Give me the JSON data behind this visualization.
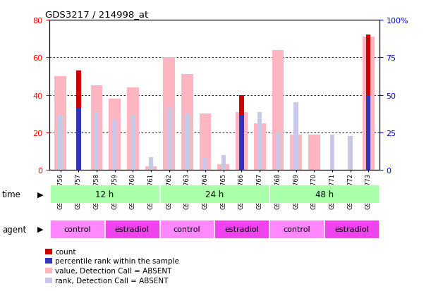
{
  "title": "GDS3217 / 214998_at",
  "samples": [
    "GSM286756",
    "GSM286757",
    "GSM286758",
    "GSM286759",
    "GSM286760",
    "GSM286761",
    "GSM286762",
    "GSM286763",
    "GSM286764",
    "GSM286765",
    "GSM286766",
    "GSM286767",
    "GSM286768",
    "GSM286769",
    "GSM286770",
    "GSM286771",
    "GSM286772",
    "GSM286773"
  ],
  "pink_bars": [
    50,
    0,
    45,
    38,
    44,
    2,
    60,
    51,
    30,
    3,
    31,
    25,
    64,
    19,
    19,
    0,
    0,
    71
  ],
  "red_bars": [
    0,
    53,
    0,
    0,
    0,
    0,
    0,
    0,
    0,
    0,
    40,
    0,
    0,
    0,
    0,
    0,
    0,
    72
  ],
  "blue_bars": [
    0,
    33,
    0,
    0,
    0,
    0,
    0,
    0,
    0,
    0,
    29,
    0,
    0,
    0,
    0,
    0,
    0,
    40
  ],
  "lavender_bars": [
    29,
    0,
    31,
    27,
    29,
    7,
    33,
    30,
    7,
    8,
    0,
    31,
    20,
    36,
    0,
    19,
    18,
    0
  ],
  "time_groups": [
    {
      "label": "12 h",
      "start": 0,
      "end": 5,
      "color": "#aaffaa"
    },
    {
      "label": "24 h",
      "start": 6,
      "end": 11,
      "color": "#aaffaa"
    },
    {
      "label": "48 h",
      "start": 12,
      "end": 17,
      "color": "#aaffaa"
    }
  ],
  "agent_groups": [
    {
      "label": "control",
      "start": 0,
      "end": 2,
      "color": "#ff88ff"
    },
    {
      "label": "estradiol",
      "start": 3,
      "end": 5,
      "color": "#ee44ee"
    },
    {
      "label": "control",
      "start": 6,
      "end": 8,
      "color": "#ff88ff"
    },
    {
      "label": "estradiol",
      "start": 9,
      "end": 11,
      "color": "#ee44ee"
    },
    {
      "label": "control",
      "start": 12,
      "end": 14,
      "color": "#ff88ff"
    },
    {
      "label": "estradiol",
      "start": 15,
      "end": 17,
      "color": "#ee44ee"
    }
  ],
  "ylim_left": [
    0,
    80
  ],
  "ylim_right": [
    0,
    100
  ],
  "yticks_left": [
    0,
    20,
    40,
    60,
    80
  ],
  "yticks_right": [
    0,
    25,
    50,
    75,
    100
  ],
  "pink_color": "#FFB6C1",
  "red_color": "#CC0000",
  "blue_color": "#3333BB",
  "lavender_color": "#C8C8E8",
  "bg_color": "#FFFFFF",
  "plot_bg": "#FFFFFF",
  "legend_items": [
    {
      "color": "#CC0000",
      "label": "count"
    },
    {
      "color": "#3333BB",
      "label": "percentile rank within the sample"
    },
    {
      "color": "#FFB6C1",
      "label": "value, Detection Call = ABSENT"
    },
    {
      "color": "#C8C8E8",
      "label": "rank, Detection Call = ABSENT"
    }
  ]
}
